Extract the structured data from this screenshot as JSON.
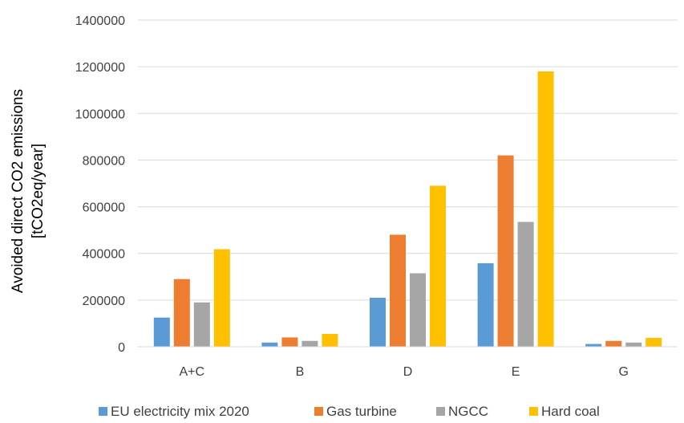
{
  "chart_data": {
    "type": "bar",
    "title": "",
    "xlabel": "",
    "ylabel_lines": [
      "Avoided direct CO2 emissions",
      "[tCO2eq/year]"
    ],
    "categories": [
      "A+C",
      "B",
      "D",
      "E",
      "G"
    ],
    "ylim": [
      0,
      1400000
    ],
    "yticks": [
      0,
      200000,
      400000,
      600000,
      800000,
      1000000,
      1200000,
      1400000
    ],
    "ytick_labels": [
      "0",
      "200000",
      "400000",
      "600000",
      "800000",
      "1000000",
      "1200000",
      "1400000"
    ],
    "grid": true,
    "legend_position": "bottom",
    "series": [
      {
        "name": "EU electricity mix 2020",
        "color": "#5B9BD5",
        "values": [
          125000,
          18000,
          210000,
          358000,
          12000
        ]
      },
      {
        "name": "Gas turbine",
        "color": "#ED7D31",
        "values": [
          290000,
          40000,
          480000,
          820000,
          25000
        ]
      },
      {
        "name": "NGCC",
        "color": "#A5A5A5",
        "values": [
          190000,
          25000,
          315000,
          535000,
          18000
        ]
      },
      {
        "name": "Hard coal",
        "color": "#FFC000",
        "values": [
          418000,
          55000,
          690000,
          1180000,
          38000
        ]
      }
    ]
  }
}
